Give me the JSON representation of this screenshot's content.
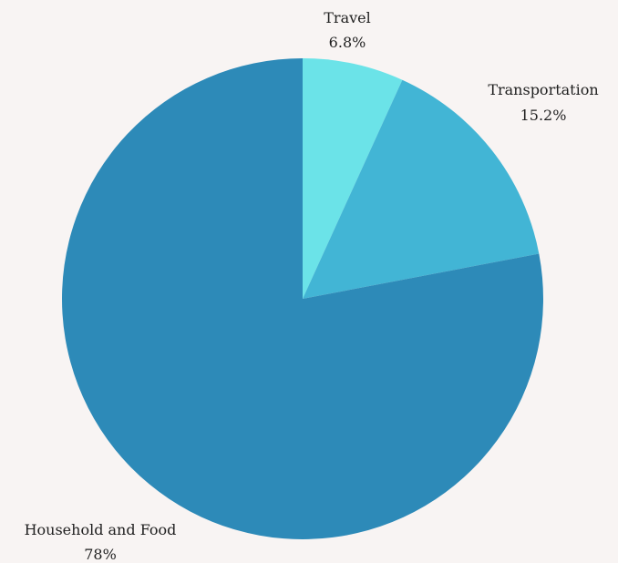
{
  "chart_data": {
    "type": "pie",
    "title": "",
    "start_angle_deg": 0,
    "direction": "clockwise",
    "slices": [
      {
        "label": "Travel",
        "value": 6.8,
        "value_label": "6.8%",
        "color": "#6be3e8"
      },
      {
        "label": "Transportation",
        "value": 15.2,
        "value_label": "15.2%",
        "color": "#42b5d5"
      },
      {
        "label": "Household and Food",
        "value": 78,
        "value_label": "78%",
        "color": "#2d8ab8"
      }
    ]
  },
  "colors": {
    "background": "#f8f4f3",
    "text": "#1f1f1f"
  }
}
